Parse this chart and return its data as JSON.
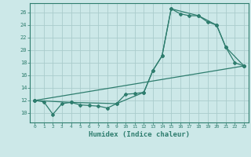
{
  "xlabel": "Humidex (Indice chaleur)",
  "bg_color": "#cce8e8",
  "grid_color": "#aacccc",
  "line_color": "#2e7d6e",
  "xlim": [
    -0.5,
    23.5
  ],
  "ylim": [
    8.5,
    27.5
  ],
  "xticks": [
    0,
    1,
    2,
    3,
    4,
    5,
    6,
    7,
    8,
    9,
    10,
    11,
    12,
    13,
    14,
    15,
    16,
    17,
    18,
    19,
    20,
    21,
    22,
    23
  ],
  "yticks": [
    10,
    12,
    14,
    16,
    18,
    20,
    22,
    24,
    26
  ],
  "line1_x": [
    0,
    1,
    2,
    3,
    4,
    5,
    6,
    7,
    8,
    9,
    10,
    11,
    12,
    13,
    14,
    15,
    16,
    17,
    18,
    19,
    20,
    21,
    22,
    23
  ],
  "line1_y": [
    12.0,
    11.8,
    9.8,
    11.5,
    11.7,
    11.3,
    11.2,
    11.1,
    10.8,
    11.5,
    13.0,
    13.1,
    13.3,
    16.8,
    19.1,
    26.6,
    25.8,
    25.5,
    25.5,
    24.5,
    24.0,
    20.5,
    18.0,
    17.5
  ],
  "line2_x": [
    0,
    4,
    9,
    12,
    13,
    14,
    15,
    18,
    20,
    21,
    23
  ],
  "line2_y": [
    12.0,
    11.7,
    11.5,
    13.3,
    16.8,
    19.1,
    26.6,
    25.5,
    24.0,
    20.5,
    17.5
  ],
  "line3_x": [
    0,
    23
  ],
  "line3_y": [
    12.0,
    17.5
  ]
}
